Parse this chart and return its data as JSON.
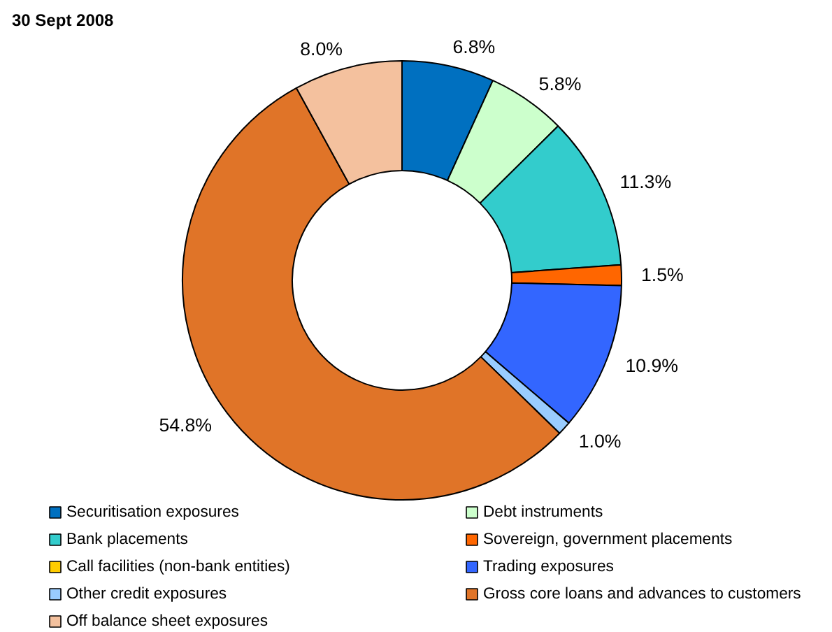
{
  "chart_data": {
    "type": "donut",
    "title": "30 Sept 2008",
    "categories": [
      "Securitisation exposures",
      "Debt instruments",
      "Bank placements",
      "Sovereign, government placements",
      "Call facilities (non-bank entities)",
      "Trading exposures",
      "Other credit exposures",
      "Gross core loans and advances to customers",
      "Off balance sheet exposures"
    ],
    "values": [
      6.8,
      5.8,
      11.3,
      1.5,
      0,
      10.9,
      1.0,
      54.8,
      8.0
    ],
    "value_labels": [
      "6.8%",
      "5.8%",
      "11.3%",
      "1.5%",
      null,
      "10.9%",
      "1.0%",
      "54.8%",
      "8.0%"
    ],
    "colors": [
      "#0070c0",
      "#ccffcc",
      "#33cccc",
      "#ff6600",
      "#ffcc00",
      "#3366ff",
      "#99ccff",
      "#e07428",
      "#f4c19e"
    ],
    "legend": "bottom"
  }
}
